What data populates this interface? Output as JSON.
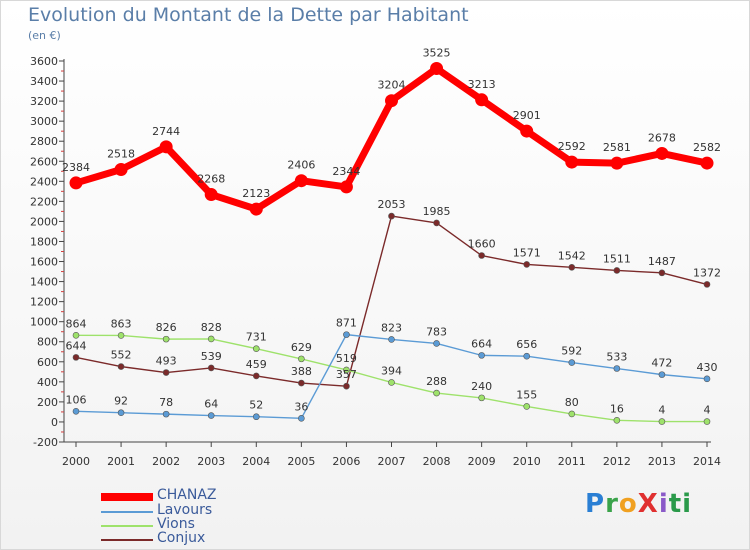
{
  "title": "Evolution du Montant de la Dette par Habitant",
  "subtitle": "(en €)",
  "logo": {
    "text": "ProXiti"
  },
  "chart_data": {
    "type": "line",
    "x": [
      "2000",
      "2001",
      "2002",
      "2003",
      "2004",
      "2005",
      "2006",
      "2007",
      "2008",
      "2009",
      "2010",
      "2011",
      "2012",
      "2013",
      "2014"
    ],
    "ylim": [
      -200,
      3600
    ],
    "yticks": [
      -200,
      0,
      200,
      400,
      600,
      800,
      1000,
      1200,
      1400,
      1600,
      1800,
      2000,
      2200,
      2400,
      2600,
      2800,
      3000,
      3200,
      3400,
      3600
    ],
    "grid": false,
    "legend_position": "bottom-left",
    "series": [
      {
        "name": "CHANAZ",
        "color": "#ff0000",
        "values": [
          2384,
          2518,
          2744,
          2268,
          2123,
          2406,
          2344,
          3204,
          3525,
          3213,
          2901,
          2592,
          2581,
          2678,
          2582
        ]
      },
      {
        "name": "Lavours",
        "color": "#5b9bd5",
        "values": [
          106,
          92,
          78,
          64,
          52,
          36,
          871,
          823,
          783,
          664,
          656,
          592,
          533,
          472,
          430
        ]
      },
      {
        "name": "Vions",
        "color": "#9ee26b",
        "values": [
          864,
          863,
          826,
          828,
          731,
          629,
          519,
          394,
          288,
          240,
          155,
          80,
          16,
          4,
          4
        ]
      },
      {
        "name": "Conjux",
        "color": "#7b2a2a",
        "values": [
          644,
          552,
          493,
          539,
          459,
          388,
          357,
          2053,
          1985,
          1660,
          1571,
          1542,
          1511,
          1487,
          1372
        ]
      }
    ]
  }
}
